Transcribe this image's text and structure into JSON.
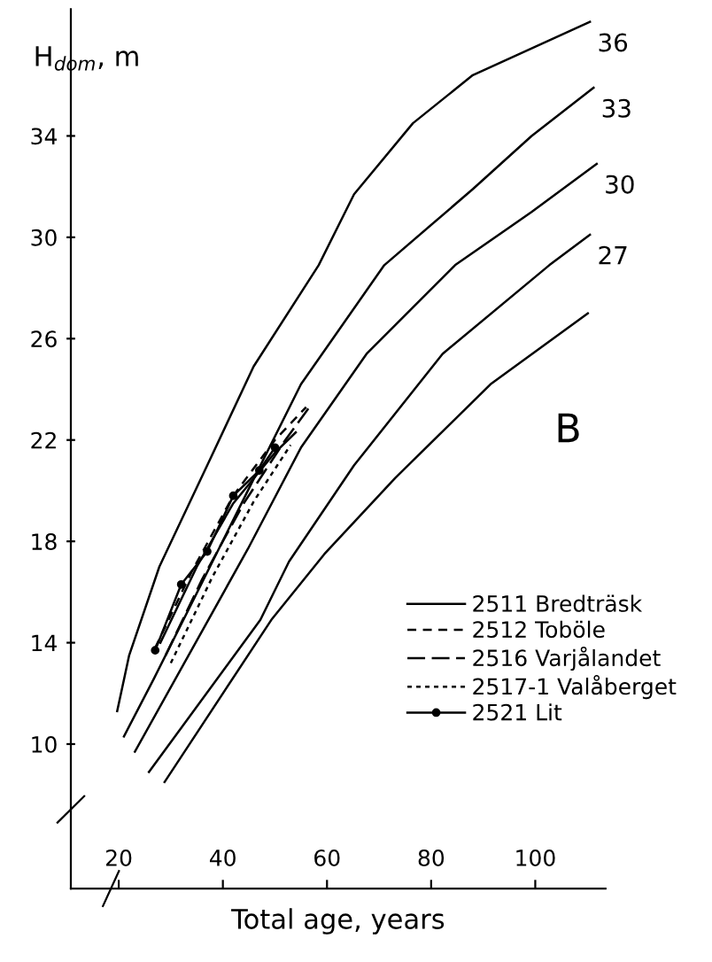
{
  "chart_data": {
    "type": "line",
    "xlabel": "Total age, years",
    "ylabel": "H$_{dom}$, m",
    "xlim": [
      10.8,
      113.5
    ],
    "ylim": [
      4.3,
      39
    ],
    "xticks": [
      20,
      40,
      60,
      80,
      100
    ],
    "yticks": [
      10,
      14,
      18,
      22,
      26,
      30,
      34
    ],
    "grid": false,
    "legend": "center right",
    "series": [
      {
        "color": "#000000",
        "line_style": "solid",
        "x": [
          19.7,
          22.0,
          27.8,
          37.0,
          45.9,
          58.4,
          65.2,
          76.5,
          88.0,
          110.5
        ],
        "values": [
          11.3,
          13.5,
          17.0,
          21.0,
          24.9,
          28.9,
          31.7,
          34.5,
          36.4,
          38.5
        ]
      },
      {
        "color": "#000000",
        "line_style": "solid",
        "x": [
          21.0,
          26.8,
          34.6,
          44.8,
          55.0,
          71.0,
          88.0,
          99.3,
          111.2
        ],
        "values": [
          10.3,
          12.6,
          15.8,
          20.0,
          24.2,
          28.9,
          31.9,
          34.0,
          35.9
        ]
      },
      {
        "color": "#000000",
        "line_style": "solid",
        "x": [
          23.1,
          44.8,
          55.0,
          67.6,
          84.6,
          99.3,
          111.8
        ],
        "values": [
          9.7,
          17.7,
          21.7,
          25.4,
          28.9,
          31.0,
          32.9
        ]
      },
      {
        "color": "#000000",
        "line_style": "solid",
        "x": [
          25.8,
          47.2,
          52.7,
          65.2,
          82.2,
          102.7,
          110.5
        ],
        "values": [
          8.9,
          14.9,
          17.2,
          21.0,
          25.4,
          28.9,
          30.1
        ]
      },
      {
        "color": "#000000",
        "line_style": "solid",
        "x": [
          28.8,
          49.3,
          59.5,
          73.1,
          91.4,
          110.1
        ],
        "values": [
          8.5,
          14.9,
          17.5,
          20.5,
          24.2,
          27.0
        ]
      },
      {
        "name": "2511 Bredträsk",
        "color": "#000000",
        "line_style": "solid",
        "x": [
          28,
          35,
          42,
          50,
          54
        ],
        "values": [
          14.0,
          17.0,
          19.5,
          21.5,
          22.3
        ]
      },
      {
        "name": "2512 Toböle",
        "color": "#000000",
        "line_style": "dashed",
        "x": [
          27,
          34,
          42,
          50,
          56
        ],
        "values": [
          13.8,
          16.8,
          19.8,
          22.0,
          23.3
        ]
      },
      {
        "name": "2516 Varjålandet",
        "color": "#000000",
        "line_style": "longdash",
        "x": [
          29,
          36,
          44,
          52,
          57
        ],
        "values": [
          13.5,
          16.5,
          19.5,
          22.0,
          23.4
        ]
      },
      {
        "name": "2517-1 Valåberget",
        "color": "#000000",
        "line_style": "dotted",
        "x": [
          30,
          38,
          46,
          53
        ],
        "values": [
          13.2,
          16.6,
          19.6,
          21.8
        ]
      },
      {
        "name": "2521 Lit",
        "color": "#000000",
        "line_style": "solid",
        "marker": "circle",
        "x": [
          27,
          32,
          37,
          42,
          47,
          50
        ],
        "values": [
          13.7,
          16.3,
          17.6,
          19.8,
          20.8,
          21.7
        ]
      }
    ],
    "annotations": [
      {
        "text": "36",
        "x": 110.5,
        "y": 38.5
      },
      {
        "text": "33",
        "x": 111.2,
        "y": 35.9
      },
      {
        "text": "30",
        "x": 111.8,
        "y": 32.9
      },
      {
        "text": "27",
        "x": 110.5,
        "y": 30.1
      },
      "B"
    ]
  }
}
